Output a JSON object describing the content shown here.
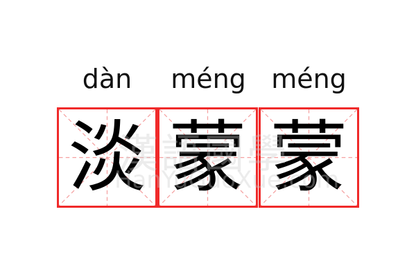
{
  "pinyin": [
    "dàn",
    "méng",
    "méng"
  ],
  "characters": [
    "淡",
    "蒙",
    "蒙"
  ],
  "watermark": {
    "chinese": "漢語國學",
    "latin": "HanYuGuoXue.com"
  },
  "colors": {
    "border": "#f02a2a",
    "guide": "#f5a0a0",
    "text": "#000000"
  }
}
